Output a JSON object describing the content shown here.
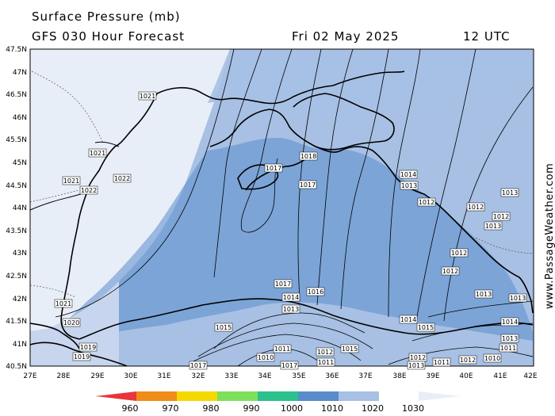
{
  "header": {
    "title": "Surface Pressure (mb)",
    "model": "GFS 030 Hour Forecast",
    "date": "Fri 02 May 2025",
    "time": "12 UTC"
  },
  "credit": "www.PassageWeather.com",
  "axes": {
    "lat_labels": [
      "47.5N",
      "47N",
      "46.5N",
      "46N",
      "45.5N",
      "45N",
      "44.5N",
      "44N",
      "43.5N",
      "43N",
      "42.5N",
      "42N",
      "41.5N",
      "41N",
      "40.5N"
    ],
    "lon_labels": [
      "27E",
      "28E",
      "29E",
      "30E",
      "31E",
      "32E",
      "33E",
      "34E",
      "35E",
      "36E",
      "37E",
      "38E",
      "39E",
      "40E",
      "41E",
      "42E"
    ]
  },
  "isobar_labels": [
    "1021",
    "1021",
    "1021",
    "1022",
    "1022",
    "1017",
    "1018",
    "1017",
    "1014",
    "1013",
    "1013",
    "1012",
    "1012",
    "1012",
    "1013",
    "1012",
    "1012",
    "1013",
    "1013",
    "1016",
    "1017",
    "1014",
    "1013",
    "1014",
    "1015",
    "1014",
    "1013",
    "1011",
    "1015",
    "1011",
    "1010",
    "1012",
    "1015",
    "1011",
    "1012",
    "1012",
    "1011",
    "1010",
    "1021",
    "1020",
    "1019",
    "1019",
    "1017",
    "1017",
    "1013"
  ],
  "legend": {
    "ticks": [
      "960",
      "970",
      "980",
      "990",
      "1000",
      "1010",
      "1020",
      "1030"
    ],
    "colors": [
      "#e8363c",
      "#f08c1a",
      "#f5d800",
      "#7ee05a",
      "#2cc08c",
      "#5a8ccc",
      "#a7c0e4",
      "#e8eef8"
    ]
  }
}
